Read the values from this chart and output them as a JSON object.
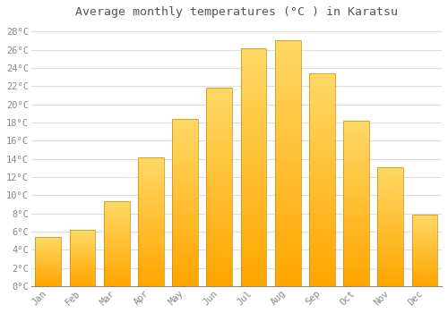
{
  "title": "Average monthly temperatures (°C ) in Karatsu",
  "months": [
    "Jan",
    "Feb",
    "Mar",
    "Apr",
    "May",
    "Jun",
    "Jul",
    "Aug",
    "Sep",
    "Oct",
    "Nov",
    "Dec"
  ],
  "temperatures": [
    5.4,
    6.2,
    9.3,
    14.2,
    18.4,
    21.8,
    26.2,
    27.1,
    23.4,
    18.2,
    13.1,
    7.9
  ],
  "bar_color_bottom": "#FFA500",
  "bar_color_top": "#FFD966",
  "bar_edge_color": "#CC8800",
  "background_color": "#FFFFFF",
  "plot_bg_color": "#FFFFFF",
  "grid_color": "#DDDDDD",
  "tick_label_color": "#888888",
  "title_color": "#555555",
  "ylim": [
    0,
    29
  ],
  "yticks": [
    0,
    2,
    4,
    6,
    8,
    10,
    12,
    14,
    16,
    18,
    20,
    22,
    24,
    26,
    28
  ],
  "bar_width": 0.75,
  "title_fontsize": 9.5
}
